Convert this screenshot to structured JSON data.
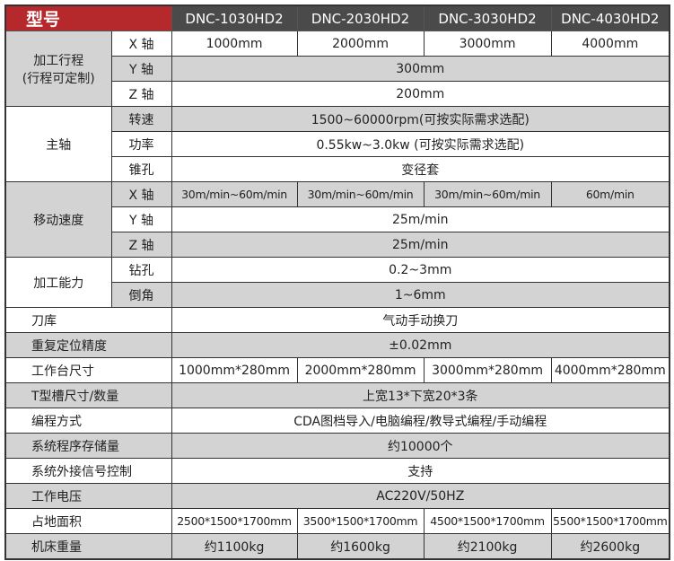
{
  "header": {
    "model_label": "型号",
    "models": [
      "DNC-1030HD2",
      "DNC-2030HD2",
      "DNC-3030HD2",
      "DNC-4030HD2"
    ]
  },
  "colors": {
    "brand": "#b5292d",
    "header_bg": "#4a4a4a",
    "row_gray": "#d3d3d3"
  },
  "travel": {
    "label": "加工行程",
    "sublabel": "(行程可定制)",
    "x_label": "X 轴",
    "x": [
      "1000mm",
      "2000mm",
      "3000mm",
      "4000mm"
    ],
    "y_label": "Y 轴",
    "y": "300mm",
    "z_label": "Z 轴",
    "z": "200mm"
  },
  "spindle": {
    "label": "主轴",
    "speed_label": "转速",
    "speed": "1500~60000rpm(可按实际需求选配)",
    "power_label": "功率",
    "power": "0.55kw~3.0kw  (可按实际需求选配)",
    "taper_label": "锥孔",
    "taper": "变径套"
  },
  "feed": {
    "label": "移动速度",
    "x_label": "X 轴",
    "x": [
      "30m/min~60m/min",
      "30m/min~60m/min",
      "30m/min~60m/min",
      "60m/min"
    ],
    "y_label": "Y 轴",
    "y": "25m/min",
    "z_label": "Z 轴",
    "z": "25m/min"
  },
  "capability": {
    "label": "加工能力",
    "drill_label": "钻孔",
    "drill": "0.2~3mm",
    "chamfer_label": "倒角",
    "chamfer": "1~6mm"
  },
  "tool_magazine": {
    "label": "刀库",
    "value": "气动手动换刀"
  },
  "repeat_accuracy": {
    "label": "重复定位精度",
    "value": "±0.02mm"
  },
  "table_size": {
    "label": "工作台尺寸",
    "values": [
      "1000mm*280mm",
      "2000mm*280mm",
      "3000mm*280mm",
      "4000mm*280mm"
    ]
  },
  "t_slot": {
    "label": "T型槽尺寸/数量",
    "value": "上宽13*下宽20*3条"
  },
  "programming": {
    "label": "编程方式",
    "value": "CDA图档导入/电脑编程/教导式编程/手动编程"
  },
  "memory": {
    "label": "系统程序存储量",
    "value": "约10000个"
  },
  "external_signal": {
    "label": "系统外接信号控制",
    "value": "支持"
  },
  "voltage": {
    "label": "工作电压",
    "value": "AC220V/50HZ"
  },
  "footprint": {
    "label": "占地面积",
    "values": [
      "2500*1500*1700mm",
      "3500*1500*1700mm",
      "4500*1500*1700mm",
      "5500*1500*1700mm"
    ]
  },
  "weight": {
    "label": "机床重量",
    "values": [
      "约1100kg",
      "约1600kg",
      "约2100kg",
      "约2600kg"
    ]
  }
}
